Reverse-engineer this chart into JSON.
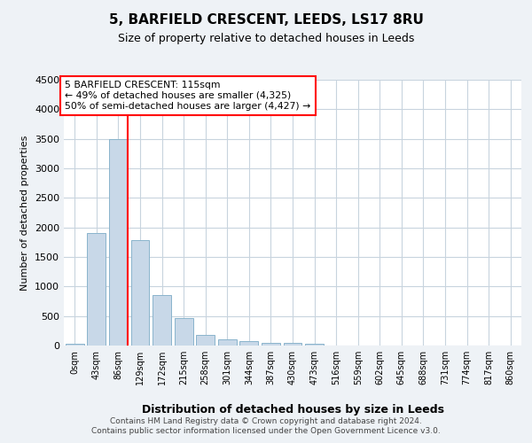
{
  "title": "5, BARFIELD CRESCENT, LEEDS, LS17 8RU",
  "subtitle": "Size of property relative to detached houses in Leeds",
  "xlabel": "Distribution of detached houses by size in Leeds",
  "ylabel": "Number of detached properties",
  "bar_color": "#c8d8e8",
  "bar_edge_color": "#8ab4cc",
  "vline_color": "red",
  "vline_x": 2.43,
  "categories": [
    "0sqm",
    "43sqm",
    "86sqm",
    "129sqm",
    "172sqm",
    "215sqm",
    "258sqm",
    "301sqm",
    "344sqm",
    "387sqm",
    "430sqm",
    "473sqm",
    "516sqm",
    "559sqm",
    "602sqm",
    "645sqm",
    "688sqm",
    "731sqm",
    "774sqm",
    "817sqm",
    "860sqm"
  ],
  "bar_heights": [
    28,
    1900,
    3500,
    1780,
    860,
    460,
    175,
    110,
    75,
    48,
    38,
    28,
    0,
    0,
    0,
    0,
    0,
    0,
    0,
    0,
    0
  ],
  "ylim": [
    0,
    4500
  ],
  "yticks": [
    0,
    500,
    1000,
    1500,
    2000,
    2500,
    3000,
    3500,
    4000,
    4500
  ],
  "annotation_text": "5 BARFIELD CRESCENT: 115sqm\n← 49% of detached houses are smaller (4,325)\n50% of semi-detached houses are larger (4,427) →",
  "annotation_box_color": "white",
  "annotation_box_edge": "red",
  "footer_line1": "Contains HM Land Registry data © Crown copyright and database right 2024.",
  "footer_line2": "Contains public sector information licensed under the Open Government Licence v3.0.",
  "background_color": "#eef2f6",
  "plot_background": "white",
  "grid_color": "#c8d4de"
}
